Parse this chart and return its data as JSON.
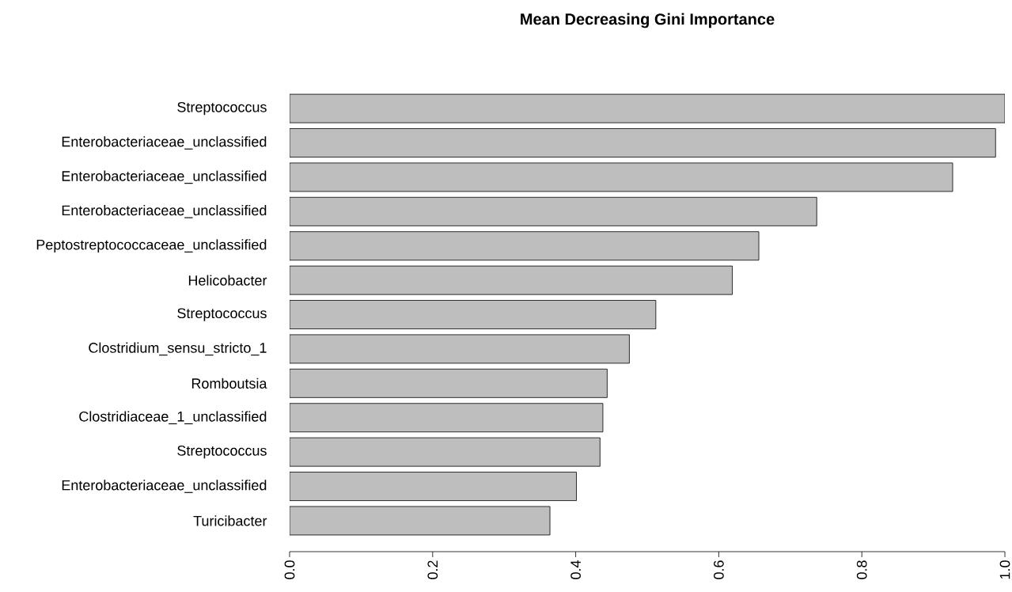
{
  "chart_data": {
    "type": "bar",
    "orientation": "horizontal",
    "title": "Mean Decreasing Gini Importance",
    "categories": [
      "Streptococcus",
      "Enterobacteriaceae_unclassified",
      "Enterobacteriaceae_unclassified",
      "Enterobacteriaceae_unclassified",
      "Peptostreptococcaceae_unclassified",
      "Helicobacter",
      "Streptococcus",
      "Clostridium_sensu_stricto_1",
      "Romboutsia",
      "Clostridiaceae_1_unclassified",
      "Streptococcus",
      "Enterobacteriaceae_unclassified",
      "Turicibacter"
    ],
    "values": [
      1.0,
      0.987,
      0.927,
      0.737,
      0.656,
      0.619,
      0.512,
      0.475,
      0.444,
      0.438,
      0.434,
      0.401,
      0.364
    ],
    "color": "#bebebe",
    "xlim": [
      0,
      1
    ],
    "xticks": [
      {
        "value": 0,
        "label": "0.0"
      },
      {
        "value": 0.2,
        "label": "0.2"
      },
      {
        "value": 0.4,
        "label": "0.4"
      },
      {
        "value": 0.6,
        "label": "0.6"
      },
      {
        "value": 0.8,
        "label": "0.8"
      },
      {
        "value": 1,
        "label": "1.0"
      }
    ]
  }
}
